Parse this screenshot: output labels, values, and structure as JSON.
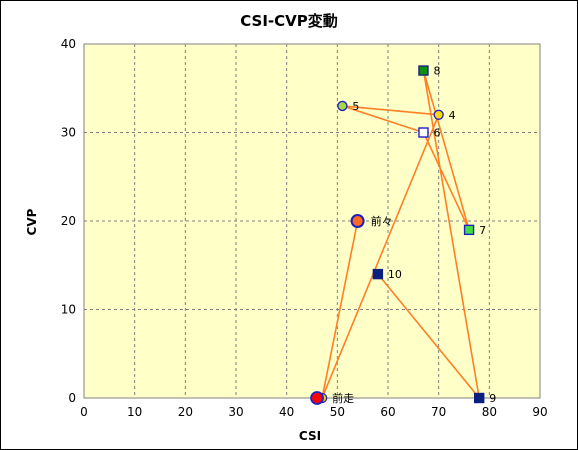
{
  "chart_data": {
    "type": "scatter",
    "title": "CSI-CVP変動",
    "xlabel": "CSI",
    "ylabel": "CVP",
    "xlim": [
      0,
      90
    ],
    "ylim": [
      0,
      40
    ],
    "xticks": [
      "0",
      "10",
      "20",
      "30",
      "40",
      "50",
      "60",
      "70",
      "80",
      "90"
    ],
    "yticks": [
      "0",
      "10",
      "20",
      "30",
      "40"
    ],
    "grid": true,
    "colors": {
      "plot_background": "#ffffc8",
      "grid": "#808080",
      "path_line": "#ff7f27"
    },
    "path_order": [
      "前々",
      "前走",
      "4",
      "5",
      "6",
      "7",
      "8",
      "9",
      "10"
    ],
    "points": [
      {
        "label": "前々",
        "x": 54,
        "y": 20,
        "marker": "circle",
        "fill": "#ff6a20",
        "stroke": "#2020c0",
        "size": "large"
      },
      {
        "label": "前走",
        "x": 47,
        "y": 0,
        "marker": "circle",
        "fill": "#ffd700",
        "stroke": "#2020c0",
        "size": "small"
      },
      {
        "label": "4",
        "x": 70,
        "y": 32,
        "marker": "circle",
        "fill": "#ffd700",
        "stroke": "#2020c0",
        "size": "small"
      },
      {
        "label": "5",
        "x": 51,
        "y": 33,
        "marker": "circle",
        "fill": "#a8d840",
        "stroke": "#2020c0",
        "size": "small"
      },
      {
        "label": "6",
        "x": 67,
        "y": 30,
        "marker": "square",
        "fill": "#ffffff",
        "stroke": "#2020c0",
        "size": "small"
      },
      {
        "label": "7",
        "x": 76,
        "y": 19,
        "marker": "square",
        "fill": "#40e040",
        "stroke": "#2020c0",
        "size": "small"
      },
      {
        "label": "8",
        "x": 67,
        "y": 37,
        "marker": "square",
        "fill": "#109010",
        "stroke": "#1a237e",
        "size": "small"
      },
      {
        "label": "9",
        "x": 78,
        "y": 0,
        "marker": "square",
        "fill": "#0a2080",
        "stroke": "#0a2080",
        "size": "small"
      },
      {
        "label": "10",
        "x": 58,
        "y": 14,
        "marker": "square",
        "fill": "#0a2080",
        "stroke": "#0a2080",
        "size": "small"
      }
    ],
    "current_marker": {
      "x": 46,
      "y": 0,
      "fill": "#ff0000",
      "stroke": "#2020c0"
    }
  }
}
